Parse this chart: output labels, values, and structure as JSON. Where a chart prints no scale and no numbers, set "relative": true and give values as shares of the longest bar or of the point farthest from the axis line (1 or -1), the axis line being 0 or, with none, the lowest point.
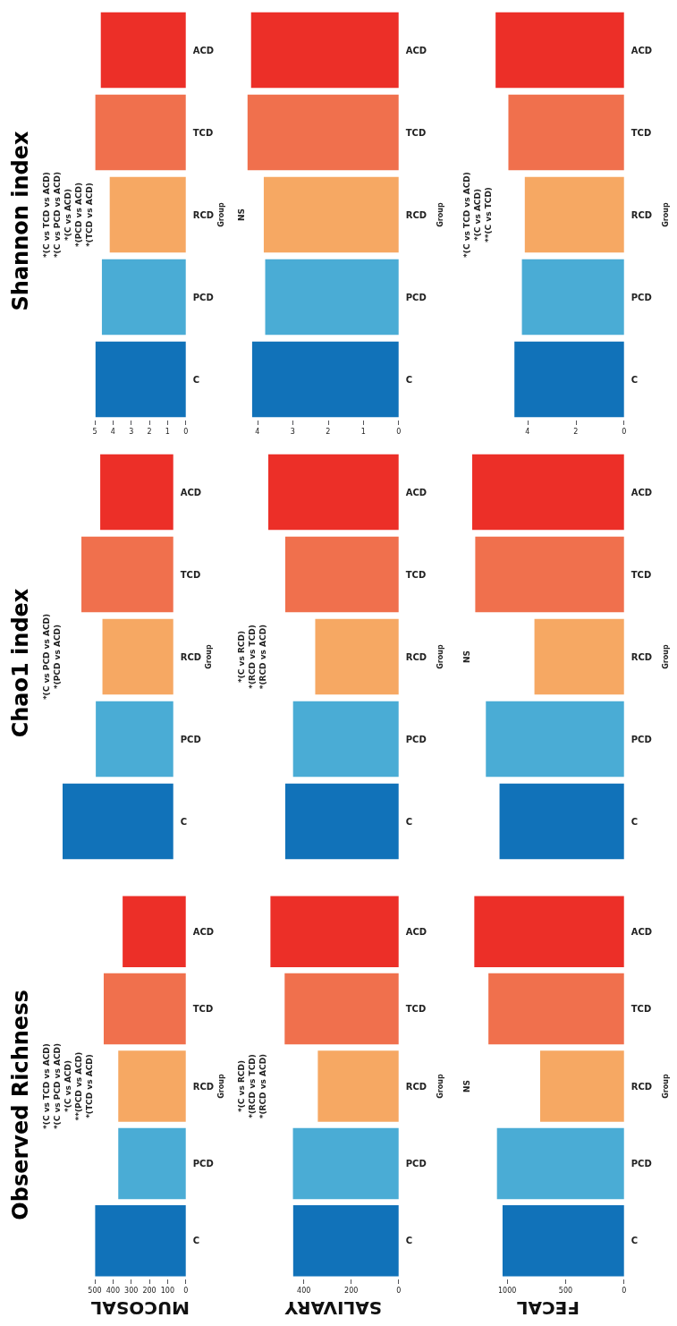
{
  "chart_data": [
    {
      "type": "bar",
      "orientation": "horizontal",
      "title": "Observed Richness",
      "xlabel": "MUCOSAL",
      "ylabel": "Group",
      "categories": [
        "ACD",
        "TCD",
        "RCD",
        "PCD",
        "C"
      ],
      "values": [
        347,
        451,
        371,
        371,
        498
      ],
      "colors": [
        "#ec2f28",
        "#f0704d",
        "#f6a863",
        "#4aacd5",
        "#1172b9"
      ],
      "xlim": [
        500,
        0
      ],
      "xticks": [
        0,
        100,
        200,
        300,
        400,
        500
      ],
      "annotations": [
        "*(C vs TCD vs ACD)",
        "*(C vs PCD vs ACD)",
        "*(C vs ACD)",
        "**(PCD vs ACD)",
        "*(TCD vs ACD)"
      ]
    },
    {
      "type": "bar",
      "orientation": "horizontal",
      "title": "Chao1 index",
      "ylabel": "Group",
      "relative": true,
      "categories": [
        "ACD",
        "TCD",
        "RCD",
        "PCD",
        "C"
      ],
      "values": [
        0.66,
        0.83,
        0.64,
        0.7,
        1
      ],
      "colors": [
        "#ec2f28",
        "#f0704d",
        "#f6a863",
        "#4aacd5",
        "#1172b9"
      ],
      "annotations": [
        "*(C vs PCD vs ACD)",
        "*(PCD vs ACD)"
      ]
    },
    {
      "type": "bar",
      "orientation": "horizontal",
      "title": "Shannon index",
      "ylabel": "Group",
      "categories": [
        "ACD",
        "TCD",
        "RCD",
        "PCD",
        "C"
      ],
      "values": [
        4.67,
        4.97,
        4.18,
        4.61,
        4.96
      ],
      "colors": [
        "#ec2f28",
        "#f0704d",
        "#f6a863",
        "#4aacd5",
        "#1172b9"
      ],
      "xlim": [
        5,
        0
      ],
      "xticks": [
        0,
        1,
        2,
        3,
        4,
        5
      ],
      "annotations": [
        "*(C vs TCD vs ACD)",
        "*(C vs PCD vs ACD)",
        "*(C vs ACD)",
        "*(PCD vs ACD)",
        "*(TCD vs ACD)"
      ]
    },
    {
      "type": "bar",
      "orientation": "horizontal",
      "xlabel": "SALIVARY",
      "ylabel": "Group",
      "categories": [
        "ACD",
        "TCD",
        "RCD",
        "PCD",
        "C"
      ],
      "values": [
        541,
        481,
        341,
        446,
        445
      ],
      "colors": [
        "#ec2f28",
        "#f0704d",
        "#f6a863",
        "#4aacd5",
        "#1172b9"
      ],
      "xlim": [
        550,
        0
      ],
      "xticks": [
        0,
        200,
        400
      ],
      "annotations": [
        "*(C vs RCD)",
        "*(RCD vs TCD)",
        "*(RCD vs ACD)"
      ]
    },
    {
      "type": "bar",
      "orientation": "horizontal",
      "ylabel": "Group",
      "relative": true,
      "categories": [
        "ACD",
        "TCD",
        "RCD",
        "PCD",
        "C"
      ],
      "values": [
        1,
        0.87,
        0.64,
        0.81,
        0.87
      ],
      "colors": [
        "#ec2f28",
        "#f0704d",
        "#f6a863",
        "#4aacd5",
        "#1172b9"
      ],
      "annotations": [
        "*(C vs RCD)",
        "*(RCD vs TCD)",
        "*(RCD vs ACD)"
      ]
    },
    {
      "type": "bar",
      "orientation": "horizontal",
      "ylabel": "Group",
      "categories": [
        "ACD",
        "TCD",
        "RCD",
        "PCD",
        "C"
      ],
      "values": [
        4.18,
        4.28,
        3.82,
        3.78,
        4.15
      ],
      "colors": [
        "#ec2f28",
        "#f0704d",
        "#f6a863",
        "#4aacd5",
        "#1172b9"
      ],
      "xlim": [
        4.3,
        0
      ],
      "xticks": [
        0,
        1,
        2,
        3,
        4
      ],
      "annotations": [
        "NS"
      ]
    },
    {
      "type": "bar",
      "orientation": "horizontal",
      "xlabel": "FECAL",
      "ylabel": "Group",
      "categories": [
        "ACD",
        "TCD",
        "RCD",
        "PCD",
        "C"
      ],
      "values": [
        1282,
        1161,
        718,
        1088,
        1040
      ],
      "colors": [
        "#ec2f28",
        "#f0704d",
        "#f6a863",
        "#4aacd5",
        "#1172b9"
      ],
      "xlim": [
        1300,
        0
      ],
      "xticks": [
        0,
        500,
        1000
      ],
      "annotations": [
        "NS"
      ]
    },
    {
      "type": "bar",
      "orientation": "horizontal",
      "ylabel": "Group",
      "relative": true,
      "categories": [
        "ACD",
        "TCD",
        "RCD",
        "PCD",
        "C"
      ],
      "values": [
        1,
        0.98,
        0.59,
        0.91,
        0.82
      ],
      "colors": [
        "#ec2f28",
        "#f0704d",
        "#f6a863",
        "#4aacd5",
        "#1172b9"
      ],
      "annotations": [
        "NS"
      ]
    },
    {
      "type": "bar",
      "orientation": "horizontal",
      "ylabel": "Group",
      "categories": [
        "ACD",
        "TCD",
        "RCD",
        "PCD",
        "C"
      ],
      "values": [
        5.32,
        4.79,
        4.11,
        4.23,
        4.54
      ],
      "colors": [
        "#ec2f28",
        "#f0704d",
        "#f6a863",
        "#4aacd5",
        "#1172b9"
      ],
      "xlim": [
        5.4,
        0
      ],
      "xticks": [
        0,
        2,
        4
      ],
      "annotations": [
        "*(C vs TCD vs ACD)",
        "*(C vs ACD)",
        "**(C vs TCD)"
      ]
    }
  ]
}
